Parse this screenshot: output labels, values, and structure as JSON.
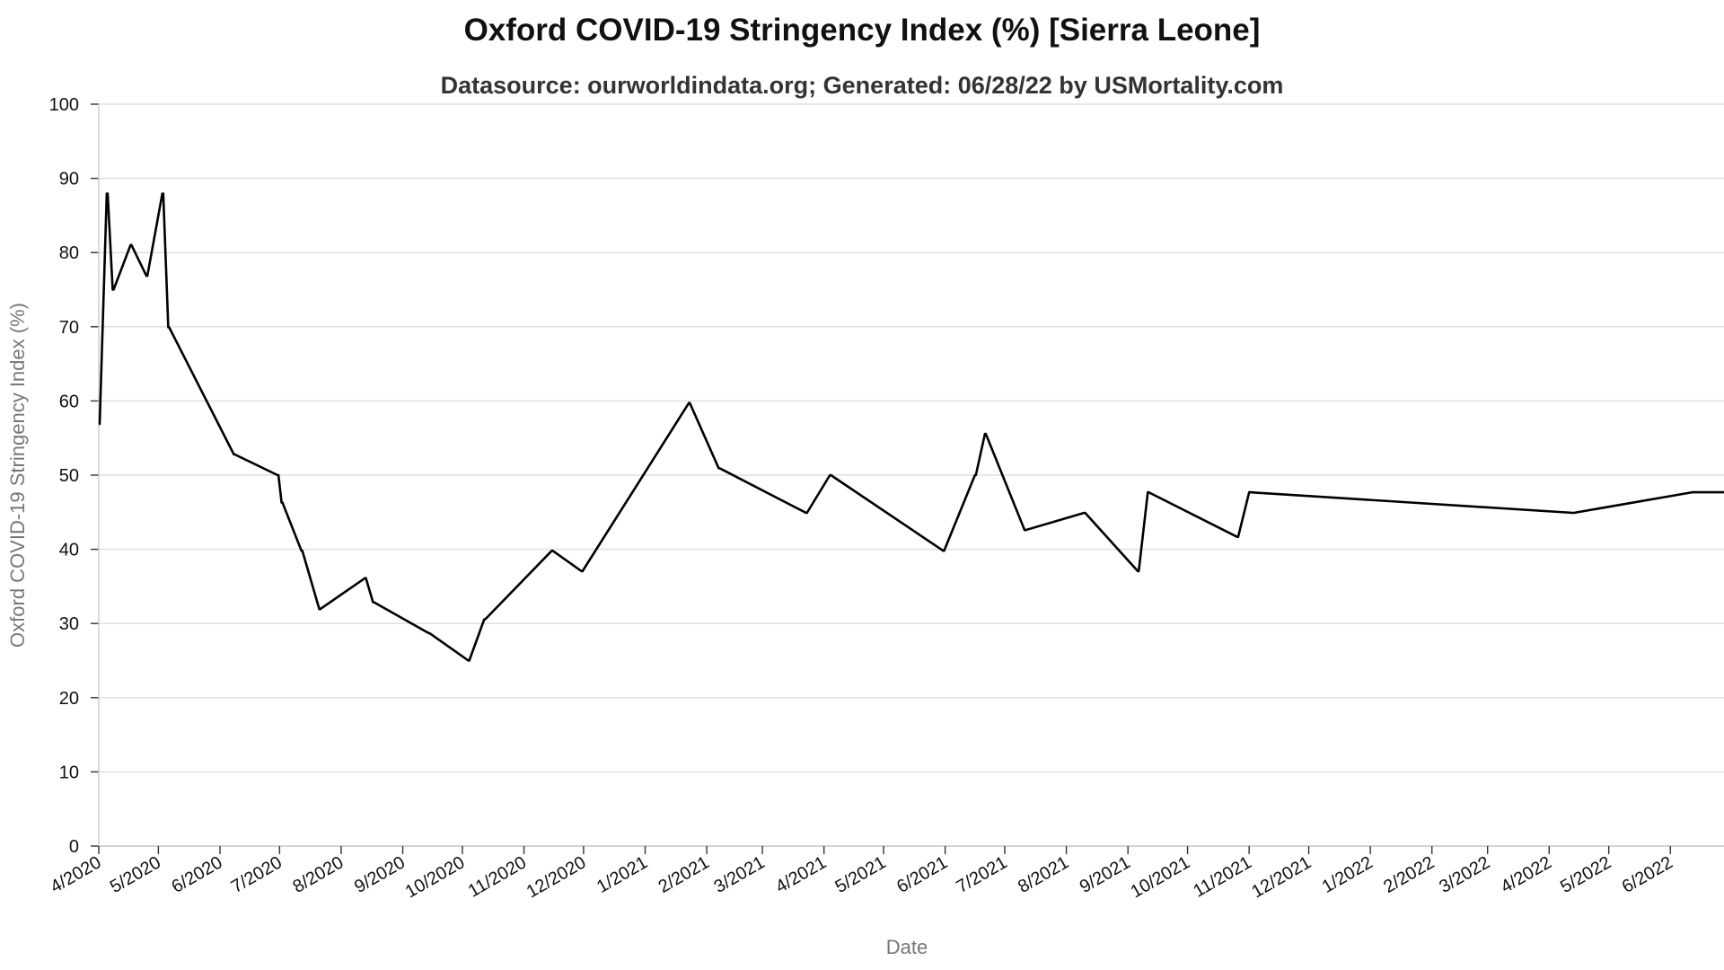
{
  "chart_data": {
    "type": "line",
    "title": "Oxford COVID-19 Stringency Index (%) [Sierra Leone]",
    "subtitle": "Datasource: ourworldindata.org; Generated: 06/28/22 by USMortality.com",
    "xlabel": "Date",
    "ylabel": "Oxford COVID-19 Stringency Index (%)",
    "ylim": [
      0,
      100
    ],
    "yticks": [
      0,
      10,
      20,
      30,
      40,
      50,
      60,
      70,
      80,
      90,
      100
    ],
    "xlim": [
      "2020-04-01",
      "2022-06-28"
    ],
    "xticks": [
      {
        "date": "2020-04-01",
        "label": "4/2020"
      },
      {
        "date": "2020-05-01",
        "label": "5/2020"
      },
      {
        "date": "2020-06-01",
        "label": "6/2020"
      },
      {
        "date": "2020-07-01",
        "label": "7/2020"
      },
      {
        "date": "2020-08-01",
        "label": "8/2020"
      },
      {
        "date": "2020-09-01",
        "label": "9/2020"
      },
      {
        "date": "2020-10-01",
        "label": "10/2020"
      },
      {
        "date": "2020-11-01",
        "label": "11/2020"
      },
      {
        "date": "2020-12-01",
        "label": "12/2020"
      },
      {
        "date": "2021-01-01",
        "label": "1/2021"
      },
      {
        "date": "2021-02-01",
        "label": "2/2021"
      },
      {
        "date": "2021-03-01",
        "label": "3/2021"
      },
      {
        "date": "2021-04-01",
        "label": "4/2021"
      },
      {
        "date": "2021-05-01",
        "label": "5/2021"
      },
      {
        "date": "2021-06-01",
        "label": "6/2021"
      },
      {
        "date": "2021-07-01",
        "label": "7/2021"
      },
      {
        "date": "2021-08-01",
        "label": "8/2021"
      },
      {
        "date": "2021-09-01",
        "label": "9/2021"
      },
      {
        "date": "2021-10-01",
        "label": "10/2021"
      },
      {
        "date": "2021-11-01",
        "label": "11/2021"
      },
      {
        "date": "2021-12-01",
        "label": "12/2021"
      },
      {
        "date": "2022-01-01",
        "label": "1/2022"
      },
      {
        "date": "2022-02-01",
        "label": "2/2022"
      },
      {
        "date": "2022-03-01",
        "label": "3/2022"
      },
      {
        "date": "2022-04-01",
        "label": "4/2022"
      },
      {
        "date": "2022-05-01",
        "label": "5/2022"
      },
      {
        "date": "2022-06-01",
        "label": "6/2022"
      }
    ],
    "grid": true,
    "series": [
      {
        "color": "#000000",
        "step": true,
        "points": [
          {
            "x": "2020-04-01",
            "y": 56.9
          },
          {
            "x": "2020-04-05",
            "y": 87.96
          },
          {
            "x": "2020-04-08",
            "y": 75
          },
          {
            "x": "2020-04-17",
            "y": 81.02
          },
          {
            "x": "2020-04-25",
            "y": 76.85
          },
          {
            "x": "2020-05-03",
            "y": 87.96
          },
          {
            "x": "2020-05-06",
            "y": 69.91
          },
          {
            "x": "2020-06-08",
            "y": 52.78
          },
          {
            "x": "2020-06-30",
            "y": 50
          },
          {
            "x": "2020-07-02",
            "y": 46.3
          },
          {
            "x": "2020-07-12",
            "y": 39.81
          },
          {
            "x": "2020-07-21",
            "y": 31.94
          },
          {
            "x": "2020-08-13",
            "y": 36.11
          },
          {
            "x": "2020-08-17",
            "y": 32.87
          },
          {
            "x": "2020-09-14",
            "y": 28.7
          },
          {
            "x": "2020-10-04",
            "y": 25
          },
          {
            "x": "2020-10-12",
            "y": 30.56
          },
          {
            "x": "2020-11-15",
            "y": 39.81
          },
          {
            "x": "2020-11-30",
            "y": 37.04
          },
          {
            "x": "2021-01-23",
            "y": 59.72
          },
          {
            "x": "2021-02-07",
            "y": 50.93
          },
          {
            "x": "2021-03-23",
            "y": 44.91
          },
          {
            "x": "2021-04-04",
            "y": 50
          },
          {
            "x": "2021-05-31",
            "y": 39.81
          },
          {
            "x": "2021-06-16",
            "y": 50
          },
          {
            "x": "2021-06-21",
            "y": 55.56
          },
          {
            "x": "2021-07-11",
            "y": 42.59
          },
          {
            "x": "2021-08-10",
            "y": 44.91
          },
          {
            "x": "2021-09-06",
            "y": 37.04
          },
          {
            "x": "2021-09-11",
            "y": 47.69
          },
          {
            "x": "2021-10-26",
            "y": 41.67
          },
          {
            "x": "2021-11-01",
            "y": 47.69
          },
          {
            "x": "2022-04-13",
            "y": 44.91
          },
          {
            "x": "2022-06-12",
            "y": 47.69
          },
          {
            "x": "2022-06-28",
            "y": 47.69
          }
        ]
      }
    ]
  }
}
